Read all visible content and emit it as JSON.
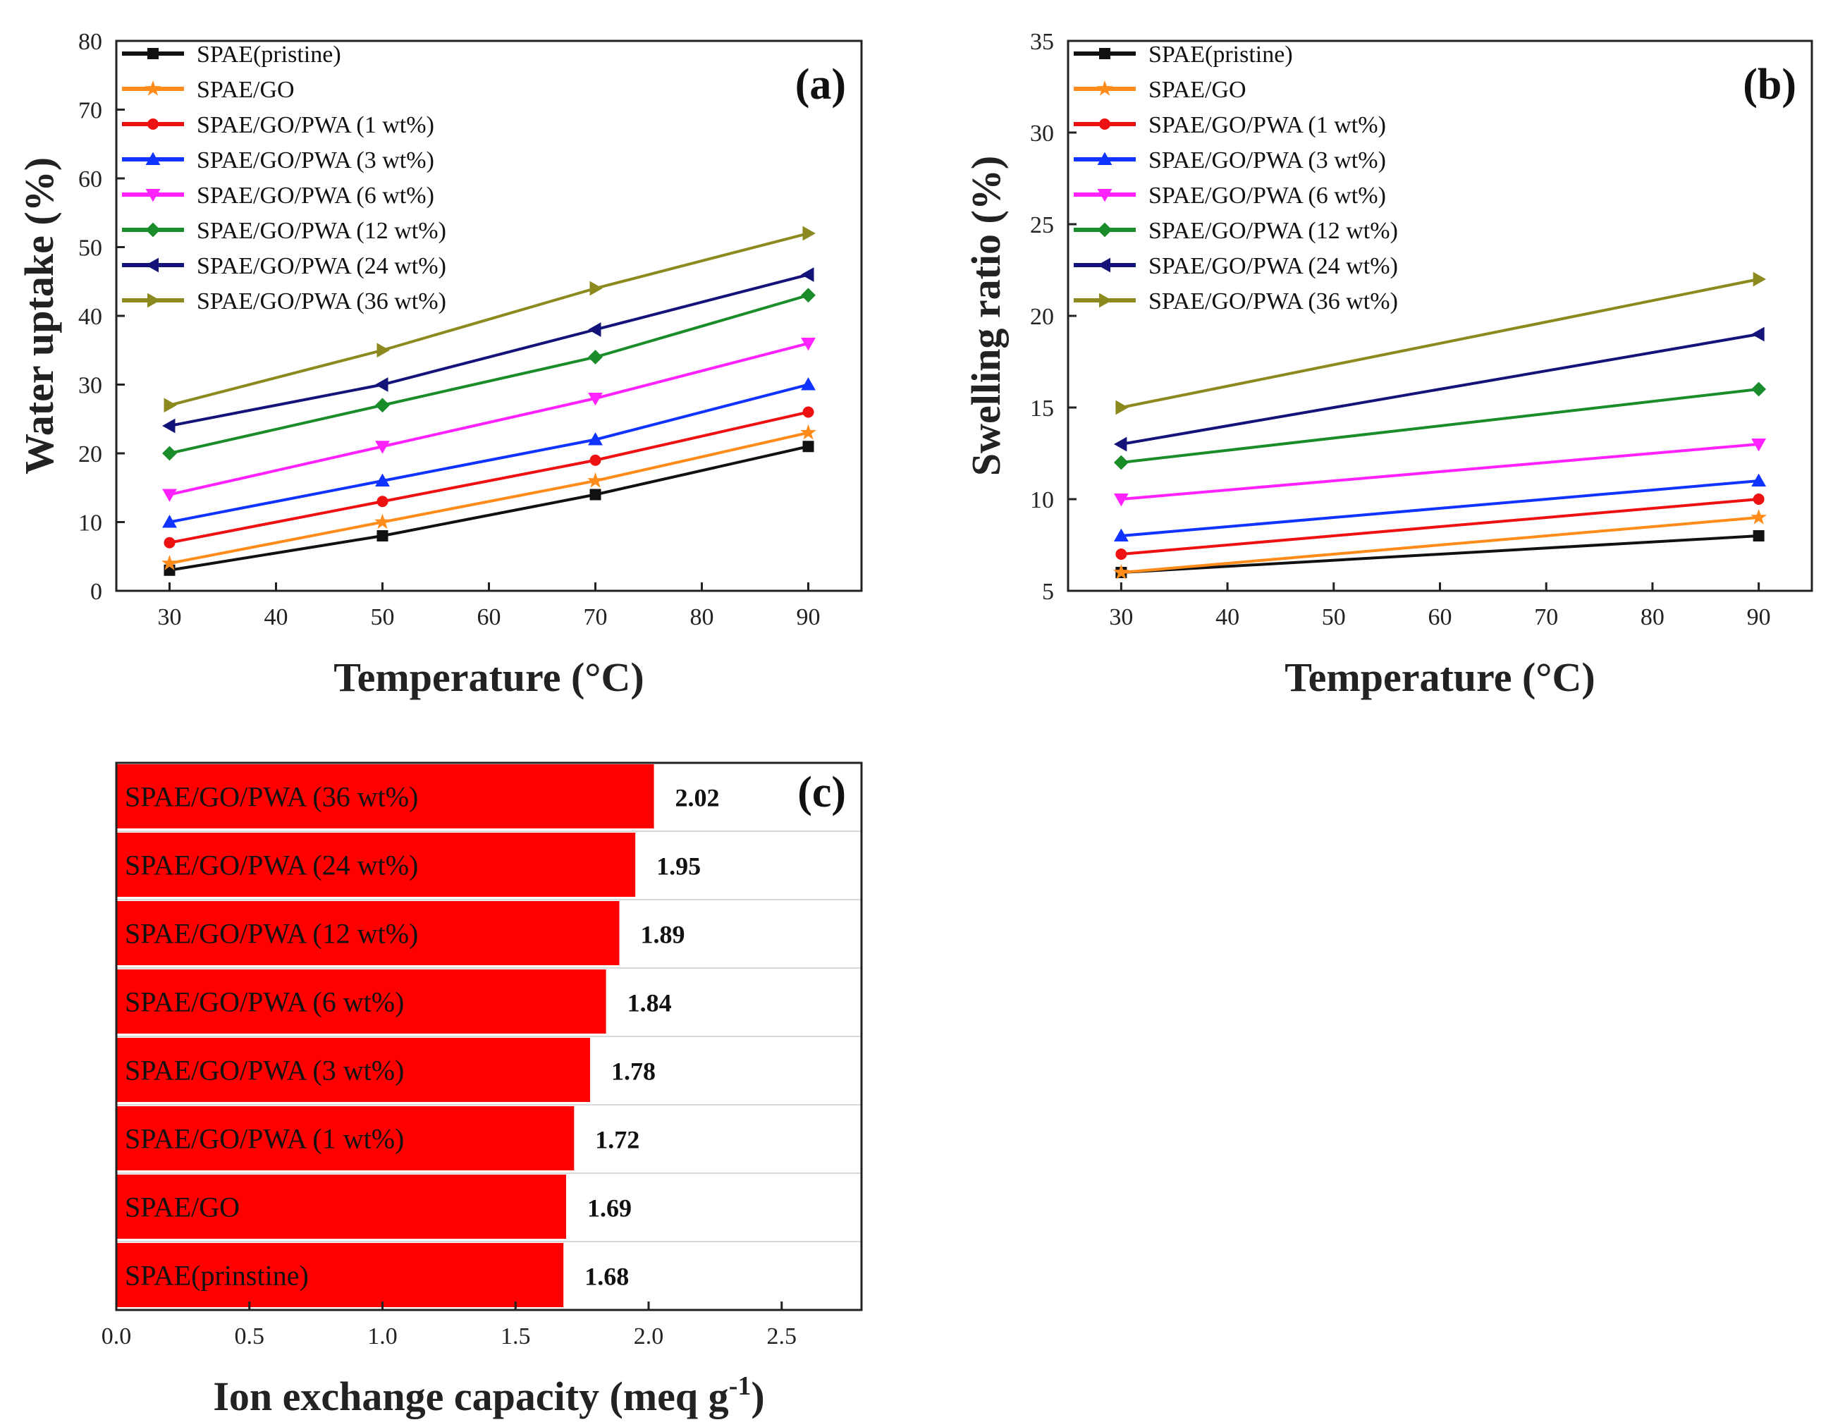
{
  "chart_data": [
    {
      "panel": "(a)",
      "type": "line",
      "xlabel": "Temperature (°C)",
      "ylabel": "Water uptake (%)",
      "xlim": [
        25,
        95
      ],
      "ylim": [
        0,
        80
      ],
      "xticks": [
        30,
        40,
        50,
        60,
        70,
        80,
        90
      ],
      "yticks": [
        0,
        10,
        20,
        30,
        40,
        50,
        60,
        70,
        80
      ],
      "x": [
        30,
        50,
        70,
        90
      ],
      "legend_position": "top-left",
      "series": [
        {
          "name": "SPAE(pristine)",
          "color": "#111111",
          "marker": "square",
          "values": [
            3,
            8,
            14,
            21
          ]
        },
        {
          "name": "SPAE/GO",
          "color": "#ff8c1a",
          "marker": "star",
          "values": [
            4,
            10,
            16,
            23
          ]
        },
        {
          "name": "SPAE/GO/PWA (1 wt%)",
          "color": "#ee1111",
          "marker": "circle",
          "values": [
            7,
            13,
            19,
            26
          ]
        },
        {
          "name": "SPAE/GO/PWA (3 wt%)",
          "color": "#1133ff",
          "marker": "triangle-up",
          "values": [
            10,
            16,
            22,
            30
          ]
        },
        {
          "name": "SPAE/GO/PWA (6 wt%)",
          "color": "#ff22ff",
          "marker": "triangle-down",
          "values": [
            14,
            21,
            28,
            36
          ]
        },
        {
          "name": "SPAE/GO/PWA (12 wt%)",
          "color": "#1a8c2a",
          "marker": "diamond",
          "values": [
            20,
            27,
            34,
            43
          ]
        },
        {
          "name": "SPAE/GO/PWA (24 wt%)",
          "color": "#14137a",
          "marker": "triangle-left",
          "values": [
            24,
            30,
            38,
            46
          ]
        },
        {
          "name": "SPAE/GO/PWA (36 wt%)",
          "color": "#8c8a1e",
          "marker": "triangle-right",
          "values": [
            27,
            35,
            44,
            52
          ]
        }
      ]
    },
    {
      "panel": "(b)",
      "type": "line",
      "xlabel": "Temperature (°C)",
      "ylabel": "Swelling ratio (%)",
      "xlim": [
        25,
        95
      ],
      "ylim": [
        5,
        35
      ],
      "xticks": [
        30,
        40,
        50,
        60,
        70,
        80,
        90
      ],
      "yticks": [
        5,
        10,
        15,
        20,
        25,
        30,
        35
      ],
      "x": [
        30,
        90
      ],
      "legend_position": "top-left",
      "series": [
        {
          "name": "SPAE(pristine)",
          "color": "#111111",
          "marker": "square",
          "values": [
            6,
            8
          ]
        },
        {
          "name": "SPAE/GO",
          "color": "#ff8c1a",
          "marker": "star",
          "values": [
            6,
            9
          ]
        },
        {
          "name": "SPAE/GO/PWA (1 wt%)",
          "color": "#ee1111",
          "marker": "circle",
          "values": [
            7,
            10
          ]
        },
        {
          "name": "SPAE/GO/PWA (3 wt%)",
          "color": "#1133ff",
          "marker": "triangle-up",
          "values": [
            8,
            11
          ]
        },
        {
          "name": "SPAE/GO/PWA (6 wt%)",
          "color": "#ff22ff",
          "marker": "triangle-down",
          "values": [
            10,
            13
          ]
        },
        {
          "name": "SPAE/GO/PWA (12 wt%)",
          "color": "#1a8c2a",
          "marker": "diamond",
          "values": [
            12,
            16
          ]
        },
        {
          "name": "SPAE/GO/PWA (24 wt%)",
          "color": "#14137a",
          "marker": "triangle-left",
          "values": [
            13,
            19
          ]
        },
        {
          "name": "SPAE/GO/PWA (36 wt%)",
          "color": "#8c8a1e",
          "marker": "triangle-right",
          "values": [
            15,
            22
          ]
        }
      ]
    },
    {
      "panel": "(c)",
      "type": "bar",
      "orientation": "horizontal",
      "xlabel": "Ion exchange capacity (meq g",
      "xlabel_superscript": "-1",
      "xlabel_suffix": ")",
      "xlim": [
        0,
        2.8
      ],
      "xticks": [
        0.0,
        0.5,
        1.0,
        1.5,
        2.0,
        2.5
      ],
      "xtick_labels": [
        "0.0",
        "0.5",
        "1.0",
        "1.5",
        "2.0",
        "2.5"
      ],
      "bar_color": "#ff0000",
      "categories": [
        "SPAE/GO/PWA (36 wt%)",
        "SPAE/GO/PWA (24 wt%)",
        "SPAE/GO/PWA (12 wt%)",
        "SPAE/GO/PWA (6 wt%)",
        "SPAE/GO/PWA (3 wt%)",
        "SPAE/GO/PWA (1 wt%)",
        "SPAE/GO",
        "SPAE(prinstine)"
      ],
      "values": [
        2.02,
        1.95,
        1.89,
        1.84,
        1.78,
        1.72,
        1.69,
        1.68
      ],
      "value_labels": [
        "2.02",
        "1.95",
        "1.89",
        "1.84",
        "1.78",
        "1.72",
        "1.69",
        "1.68"
      ]
    }
  ]
}
